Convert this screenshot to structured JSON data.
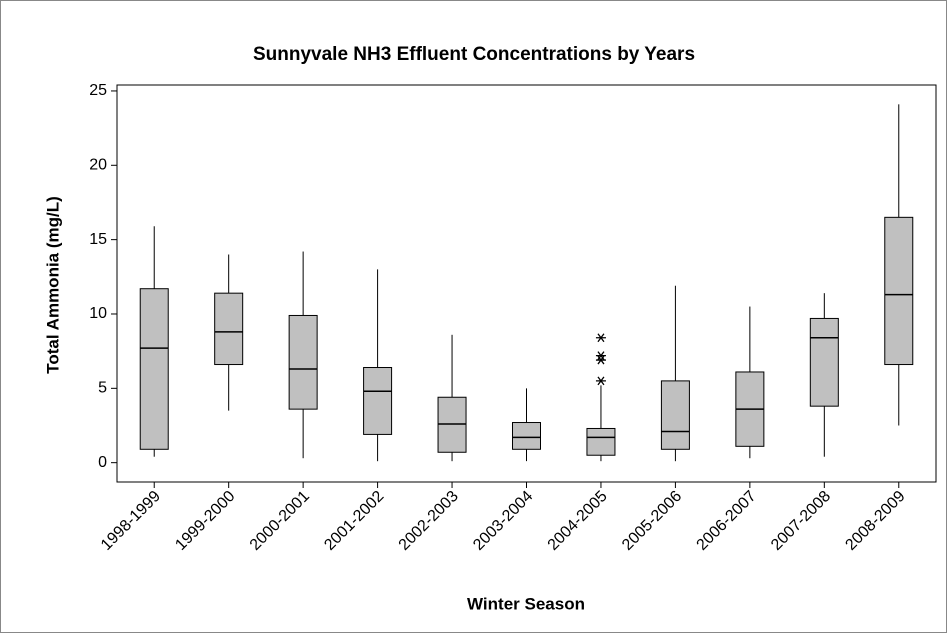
{
  "chart_data": {
    "type": "box",
    "title": "Sunnyvale NH3 Effluent Concentrations by Years",
    "x_label": "Winter Season",
    "y_label": "Total Ammonia (mg/L)",
    "categories": [
      "1998-1999",
      "1999-2000",
      "2000-2001",
      "2001-2002",
      "2002-2003",
      "2003-2004",
      "2004-2005",
      "2005-2006",
      "2006-2007",
      "2007-2008",
      "2008-2009"
    ],
    "min": [
      0.4,
      3.5,
      0.3,
      0.1,
      0.1,
      0.1,
      0.1,
      0.1,
      0.3,
      0.4,
      2.5
    ],
    "q1": [
      0.9,
      6.6,
      3.6,
      1.9,
      0.7,
      0.9,
      0.5,
      0.9,
      1.1,
      3.8,
      6.6
    ],
    "median": [
      7.7,
      8.8,
      6.3,
      4.8,
      2.6,
      1.7,
      1.7,
      2.1,
      3.6,
      8.4,
      11.3
    ],
    "q3": [
      11.7,
      11.4,
      9.9,
      6.4,
      4.4,
      2.7,
      2.3,
      5.5,
      6.1,
      9.7,
      16.5
    ],
    "max": [
      15.9,
      14.0,
      14.2,
      13.0,
      8.6,
      5.0,
      5.2,
      11.9,
      10.5,
      11.4,
      24.1
    ],
    "outliers": [
      [],
      [],
      [],
      [],
      [],
      [],
      [
        8.4,
        7.2,
        6.9,
        5.5
      ],
      [],
      [],
      [],
      []
    ],
    "color": "#c0c0c0",
    "ylim": [
      -1.3,
      25.4
    ],
    "yticks": [
      0,
      5,
      10,
      15,
      20,
      25
    ]
  }
}
